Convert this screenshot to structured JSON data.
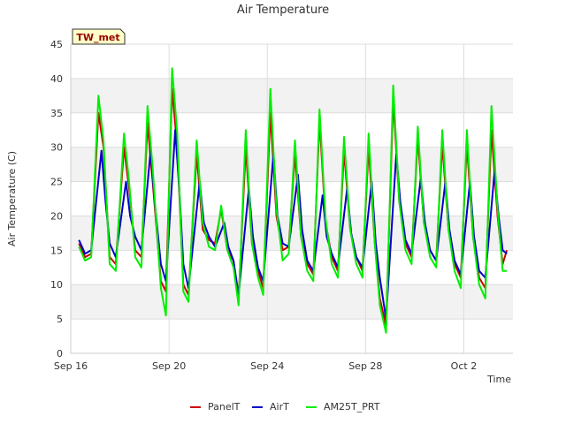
{
  "chart_data": {
    "type": "line",
    "title": "Air Temperature",
    "xlabel": "Time",
    "ylabel": "Air Temperature (C)",
    "station_label": "TW_met",
    "ylim": [
      0,
      45
    ],
    "y_ticks": [
      0,
      5,
      10,
      15,
      20,
      25,
      30,
      35,
      40,
      45
    ],
    "xlim": [
      "2023-09-16",
      "2023-10-04"
    ],
    "x_ticks": [
      {
        "date": "2023-09-16",
        "label": "Sep 16"
      },
      {
        "date": "2023-09-20",
        "label": "Sep 20"
      },
      {
        "date": "2023-09-24",
        "label": "Sep 24"
      },
      {
        "date": "2023-09-28",
        "label": "Sep 28"
      },
      {
        "date": "2023-10-02",
        "label": "Oct 2"
      }
    ],
    "grid": true,
    "legend_position": "bottom",
    "series": [
      {
        "name": "PanelT",
        "color": "#cc0000",
        "points": [
          [
            "2023-09-16T08:00",
            16.0
          ],
          [
            "2023-09-16T14:00",
            14.0
          ],
          [
            "2023-09-16T20:00",
            14.5
          ],
          [
            "2023-09-17T03:00",
            35.0
          ],
          [
            "2023-09-17T08:00",
            30.0
          ],
          [
            "2023-09-17T14:00",
            14.0
          ],
          [
            "2023-09-17T20:00",
            13.0
          ],
          [
            "2023-09-18T04:00",
            30.0
          ],
          [
            "2023-09-18T09:00",
            24.0
          ],
          [
            "2023-09-18T15:00",
            15.0
          ],
          [
            "2023-09-18T21:00",
            14.0
          ],
          [
            "2023-09-19T03:00",
            33.5
          ],
          [
            "2023-09-19T08:00",
            25.0
          ],
          [
            "2023-09-19T16:00",
            10.5
          ],
          [
            "2023-09-19T21:00",
            9.0
          ],
          [
            "2023-09-20T03:00",
            38.5
          ],
          [
            "2023-09-20T08:00",
            30.0
          ],
          [
            "2023-09-20T14:00",
            10.0
          ],
          [
            "2023-09-20T19:00",
            8.5
          ],
          [
            "2023-09-21T03:00",
            29.0
          ],
          [
            "2023-09-21T09:00",
            18.0
          ],
          [
            "2023-09-21T15:00",
            16.5
          ],
          [
            "2023-09-21T21:00",
            16.0
          ],
          [
            "2023-09-22T03:00",
            21.0
          ],
          [
            "2023-09-22T09:00",
            15.0
          ],
          [
            "2023-09-22T15:00",
            13.5
          ],
          [
            "2023-09-22T20:00",
            8.0
          ],
          [
            "2023-09-23T03:00",
            30.0
          ],
          [
            "2023-09-23T09:00",
            16.0
          ],
          [
            "2023-09-23T15:00",
            12.0
          ],
          [
            "2023-09-23T20:00",
            9.5
          ],
          [
            "2023-09-24T03:00",
            35.0
          ],
          [
            "2023-09-24T09:00",
            20.0
          ],
          [
            "2023-09-24T15:00",
            15.0
          ],
          [
            "2023-09-24T21:00",
            15.5
          ],
          [
            "2023-09-25T03:00",
            29.0
          ],
          [
            "2023-09-25T09:00",
            17.0
          ],
          [
            "2023-09-25T15:00",
            13.0
          ],
          [
            "2023-09-25T21:00",
            11.5
          ],
          [
            "2023-09-26T03:00",
            34.0
          ],
          [
            "2023-09-26T09:00",
            19.0
          ],
          [
            "2023-09-26T15:00",
            14.0
          ],
          [
            "2023-09-26T21:00",
            12.0
          ],
          [
            "2023-09-27T03:00",
            29.5
          ],
          [
            "2023-09-27T09:00",
            18.0
          ],
          [
            "2023-09-27T15:00",
            14.0
          ],
          [
            "2023-09-27T21:00",
            12.0
          ],
          [
            "2023-09-28T03:00",
            30.0
          ],
          [
            "2023-09-28T09:00",
            16.0
          ],
          [
            "2023-09-28T14:00",
            8.0
          ],
          [
            "2023-09-28T20:00",
            4.0
          ],
          [
            "2023-09-29T03:00",
            37.0
          ],
          [
            "2023-09-29T09:00",
            22.0
          ],
          [
            "2023-09-29T15:00",
            16.0
          ],
          [
            "2023-09-29T21:00",
            14.0
          ],
          [
            "2023-09-30T03:00",
            31.5
          ],
          [
            "2023-09-30T09:00",
            19.0
          ],
          [
            "2023-09-30T15:00",
            15.0
          ],
          [
            "2023-09-30T21:00",
            13.5
          ],
          [
            "2023-10-01T03:00",
            30.5
          ],
          [
            "2023-10-01T09:00",
            18.0
          ],
          [
            "2023-10-01T15:00",
            13.0
          ],
          [
            "2023-10-01T21:00",
            11.0
          ],
          [
            "2023-10-02T03:00",
            30.5
          ],
          [
            "2023-10-02T09:00",
            17.0
          ],
          [
            "2023-10-02T15:00",
            11.0
          ],
          [
            "2023-10-02T21:00",
            9.5
          ],
          [
            "2023-10-03T03:00",
            32.5
          ],
          [
            "2023-10-03T09:00",
            20.0
          ],
          [
            "2023-10-03T14:00",
            13.0
          ],
          [
            "2023-10-03T18:00",
            15.0
          ]
        ]
      },
      {
        "name": "AirT",
        "color": "#0000cc",
        "points": [
          [
            "2023-09-16T08:00",
            16.5
          ],
          [
            "2023-09-16T14:00",
            14.5
          ],
          [
            "2023-09-16T20:00",
            15.0
          ],
          [
            "2023-09-17T06:00",
            29.5
          ],
          [
            "2023-09-17T10:00",
            22.0
          ],
          [
            "2023-09-17T14:00",
            16.0
          ],
          [
            "2023-09-17T20:00",
            14.0
          ],
          [
            "2023-09-18T06:00",
            25.0
          ],
          [
            "2023-09-18T10:00",
            20.0
          ],
          [
            "2023-09-18T15:00",
            17.0
          ],
          [
            "2023-09-18T21:00",
            15.0
          ],
          [
            "2023-09-19T06:00",
            29.5
          ],
          [
            "2023-09-19T10:00",
            22.0
          ],
          [
            "2023-09-19T16:00",
            13.0
          ],
          [
            "2023-09-19T21:00",
            10.5
          ],
          [
            "2023-09-20T06:00",
            32.5
          ],
          [
            "2023-09-20T10:00",
            24.0
          ],
          [
            "2023-09-20T14:00",
            13.0
          ],
          [
            "2023-09-20T19:00",
            9.5
          ],
          [
            "2023-09-21T06:00",
            25.0
          ],
          [
            "2023-09-21T10:00",
            19.0
          ],
          [
            "2023-09-21T15:00",
            17.0
          ],
          [
            "2023-09-21T21:00",
            15.5
          ],
          [
            "2023-09-22T06:00",
            19.0
          ],
          [
            "2023-09-22T10:00",
            15.5
          ],
          [
            "2023-09-22T15:00",
            13.5
          ],
          [
            "2023-09-22T20:00",
            8.5
          ],
          [
            "2023-09-23T06:00",
            24.0
          ],
          [
            "2023-09-23T10:00",
            17.0
          ],
          [
            "2023-09-23T15:00",
            12.5
          ],
          [
            "2023-09-23T20:00",
            10.5
          ],
          [
            "2023-09-24T06:00",
            29.0
          ],
          [
            "2023-09-24T10:00",
            20.0
          ],
          [
            "2023-09-24T15:00",
            16.0
          ],
          [
            "2023-09-24T21:00",
            15.5
          ],
          [
            "2023-09-25T06:00",
            26.0
          ],
          [
            "2023-09-25T10:00",
            18.0
          ],
          [
            "2023-09-25T15:00",
            13.5
          ],
          [
            "2023-09-25T21:00",
            12.0
          ],
          [
            "2023-09-26T06:00",
            23.0
          ],
          [
            "2023-09-26T10:00",
            17.0
          ],
          [
            "2023-09-26T15:00",
            14.5
          ],
          [
            "2023-09-26T21:00",
            12.5
          ],
          [
            "2023-09-27T06:00",
            24.0
          ],
          [
            "2023-09-27T10:00",
            17.5
          ],
          [
            "2023-09-27T15:00",
            14.0
          ],
          [
            "2023-09-27T21:00",
            12.5
          ],
          [
            "2023-09-28T06:00",
            25.0
          ],
          [
            "2023-09-28T10:00",
            16.0
          ],
          [
            "2023-09-28T14:00",
            11.0
          ],
          [
            "2023-09-28T20:00",
            5.0
          ],
          [
            "2023-09-29T06:00",
            29.0
          ],
          [
            "2023-09-29T10:00",
            22.0
          ],
          [
            "2023-09-29T15:00",
            16.5
          ],
          [
            "2023-09-29T21:00",
            14.5
          ],
          [
            "2023-09-30T06:00",
            25.5
          ],
          [
            "2023-09-30T10:00",
            19.0
          ],
          [
            "2023-09-30T15:00",
            15.0
          ],
          [
            "2023-09-30T21:00",
            13.5
          ],
          [
            "2023-10-01T06:00",
            25.0
          ],
          [
            "2023-10-01T10:00",
            18.0
          ],
          [
            "2023-10-01T15:00",
            13.5
          ],
          [
            "2023-10-01T21:00",
            11.5
          ],
          [
            "2023-10-02T06:00",
            25.0
          ],
          [
            "2023-10-02T10:00",
            17.0
          ],
          [
            "2023-10-02T15:00",
            12.0
          ],
          [
            "2023-10-02T21:00",
            11.0
          ],
          [
            "2023-10-03T06:00",
            26.5
          ],
          [
            "2023-10-03T10:00",
            20.0
          ],
          [
            "2023-10-03T14:00",
            15.0
          ],
          [
            "2023-10-03T18:00",
            14.5
          ]
        ]
      },
      {
        "name": "AM25T_PRT",
        "color": "#00ee00",
        "points": [
          [
            "2023-09-16T08:00",
            15.5
          ],
          [
            "2023-09-16T14:00",
            13.5
          ],
          [
            "2023-09-16T20:00",
            14.0
          ],
          [
            "2023-09-17T03:00",
            37.5
          ],
          [
            "2023-09-17T08:00",
            31.0
          ],
          [
            "2023-09-17T14:00",
            13.0
          ],
          [
            "2023-09-17T20:00",
            12.0
          ],
          [
            "2023-09-18T04:00",
            32.0
          ],
          [
            "2023-09-18T09:00",
            25.0
          ],
          [
            "2023-09-18T15:00",
            14.0
          ],
          [
            "2023-09-18T21:00",
            12.5
          ],
          [
            "2023-09-19T03:00",
            36.0
          ],
          [
            "2023-09-19T08:00",
            27.0
          ],
          [
            "2023-09-19T16:00",
            9.5
          ],
          [
            "2023-09-19T21:00",
            5.5
          ],
          [
            "2023-09-20T03:00",
            41.5
          ],
          [
            "2023-09-20T08:00",
            32.0
          ],
          [
            "2023-09-20T14:00",
            9.0
          ],
          [
            "2023-09-20T19:00",
            7.5
          ],
          [
            "2023-09-21T03:00",
            31.0
          ],
          [
            "2023-09-21T09:00",
            19.0
          ],
          [
            "2023-09-21T15:00",
            15.5
          ],
          [
            "2023-09-21T21:00",
            15.0
          ],
          [
            "2023-09-22T03:00",
            21.5
          ],
          [
            "2023-09-22T09:00",
            15.0
          ],
          [
            "2023-09-22T15:00",
            12.5
          ],
          [
            "2023-09-22T20:00",
            7.0
          ],
          [
            "2023-09-23T03:00",
            32.5
          ],
          [
            "2023-09-23T09:00",
            16.0
          ],
          [
            "2023-09-23T15:00",
            11.0
          ],
          [
            "2023-09-23T20:00",
            8.5
          ],
          [
            "2023-09-24T03:00",
            38.5
          ],
          [
            "2023-09-24T09:00",
            21.0
          ],
          [
            "2023-09-24T15:00",
            13.5
          ],
          [
            "2023-09-24T21:00",
            14.5
          ],
          [
            "2023-09-25T03:00",
            31.0
          ],
          [
            "2023-09-25T09:00",
            17.0
          ],
          [
            "2023-09-25T15:00",
            12.0
          ],
          [
            "2023-09-25T21:00",
            10.5
          ],
          [
            "2023-09-26T03:00",
            35.5
          ],
          [
            "2023-09-26T09:00",
            19.5
          ],
          [
            "2023-09-26T15:00",
            13.0
          ],
          [
            "2023-09-26T21:00",
            11.0
          ],
          [
            "2023-09-27T03:00",
            31.5
          ],
          [
            "2023-09-27T09:00",
            18.0
          ],
          [
            "2023-09-27T15:00",
            13.0
          ],
          [
            "2023-09-27T21:00",
            11.0
          ],
          [
            "2023-09-28T03:00",
            32.0
          ],
          [
            "2023-09-28T09:00",
            16.0
          ],
          [
            "2023-09-28T14:00",
            7.0
          ],
          [
            "2023-09-28T20:00",
            3.0
          ],
          [
            "2023-09-29T03:00",
            39.0
          ],
          [
            "2023-09-29T09:00",
            22.0
          ],
          [
            "2023-09-29T15:00",
            15.0
          ],
          [
            "2023-09-29T21:00",
            13.0
          ],
          [
            "2023-09-30T03:00",
            33.0
          ],
          [
            "2023-09-30T09:00",
            19.0
          ],
          [
            "2023-09-30T15:00",
            14.0
          ],
          [
            "2023-09-30T21:00",
            12.5
          ],
          [
            "2023-10-01T03:00",
            32.5
          ],
          [
            "2023-10-01T09:00",
            18.0
          ],
          [
            "2023-10-01T15:00",
            12.0
          ],
          [
            "2023-10-01T21:00",
            9.5
          ],
          [
            "2023-10-02T03:00",
            32.5
          ],
          [
            "2023-10-02T09:00",
            17.0
          ],
          [
            "2023-10-02T15:00",
            10.0
          ],
          [
            "2023-10-02T21:00",
            8.0
          ],
          [
            "2023-10-03T03:00",
            36.0
          ],
          [
            "2023-10-03T09:00",
            21.0
          ],
          [
            "2023-10-03T14:00",
            12.0
          ],
          [
            "2023-10-03T18:00",
            12.0
          ]
        ]
      }
    ]
  }
}
